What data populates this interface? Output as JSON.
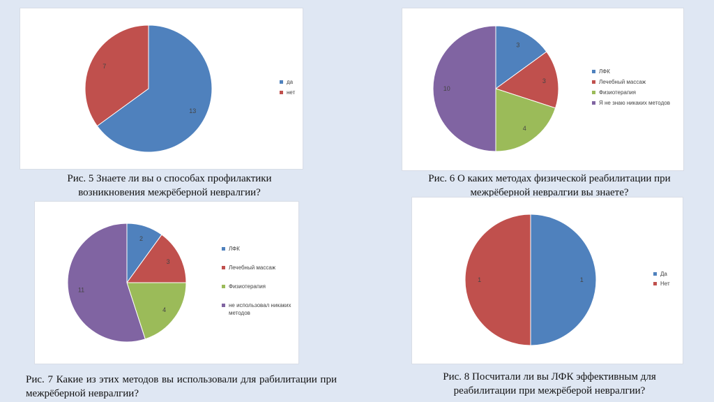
{
  "colors": {
    "blue": "#4f81bd",
    "red": "#c0504d",
    "green": "#9bbb59",
    "purple": "#8064a2"
  },
  "chart_data": [
    {
      "type": "pie",
      "categories": [
        "да",
        "нет"
      ],
      "values": [
        13,
        7
      ],
      "colors": [
        "#4f81bd",
        "#c0504d"
      ],
      "legend": "right",
      "caption": "Рис. 5 Знаете ли вы о способах профилактики возникновения межрёберной невралгии?"
    },
    {
      "type": "pie",
      "categories": [
        "ЛФК",
        "Лечебный массаж",
        "Физиотерапия",
        "Я не знаю никаких методов"
      ],
      "values": [
        3,
        3,
        4,
        10
      ],
      "colors": [
        "#4f81bd",
        "#c0504d",
        "#9bbb59",
        "#8064a2"
      ],
      "legend": "right",
      "caption": "Рис. 6 О каких методах физической реабилитации при межрёберной невралгии вы знаете?"
    },
    {
      "type": "pie",
      "categories": [
        "ЛФК",
        "Лечебный массаж",
        "Физиотерапия",
        "не использовал никаких методов"
      ],
      "values": [
        2,
        3,
        4,
        11
      ],
      "colors": [
        "#4f81bd",
        "#c0504d",
        "#9bbb59",
        "#8064a2"
      ],
      "legend": "right",
      "caption": "Рис. 7 Какие из этих методов вы использовали для рабилитации при межрёберной невралгии?"
    },
    {
      "type": "pie",
      "categories": [
        "Да",
        "Нет"
      ],
      "values": [
        1,
        1
      ],
      "colors": [
        "#4f81bd",
        "#c0504d"
      ],
      "legend": "right",
      "caption": "Рис. 8 Посчитали ли вы ЛФК эффективным для реабилитации при межрёберой невралгии?"
    }
  ]
}
